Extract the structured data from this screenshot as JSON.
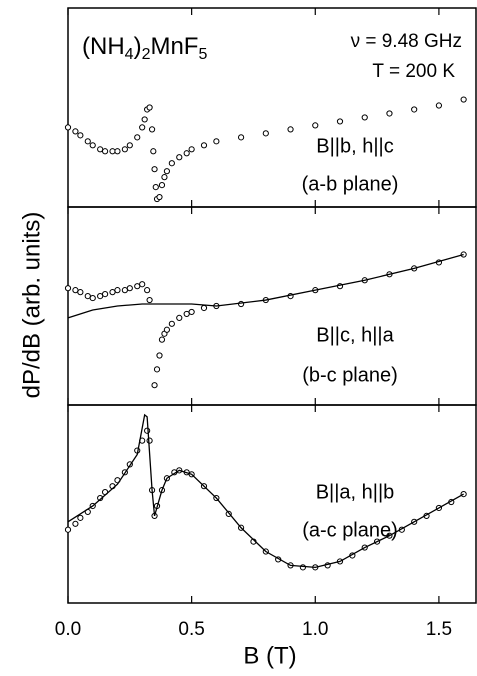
{
  "chart_data": [
    {
      "type": "scatter",
      "annotations": [
        "ν = 9.48 GHz",
        "T = 200 K",
        "B||b, h||c",
        "(a-b plane)"
      ],
      "formula": [
        "(NH",
        "4",
        ")",
        "2",
        "MnF",
        "5"
      ],
      "xlim": [
        0,
        1.65
      ],
      "xticks": [
        0,
        0.5,
        1,
        1.5
      ],
      "ylim": [
        0,
        100
      ],
      "series": [
        {
          "style": "markers",
          "color": "#000000",
          "x": [
            0,
            0.03,
            0.05,
            0.08,
            0.1,
            0.13,
            0.15,
            0.18,
            0.2,
            0.23,
            0.25,
            0.28,
            0.3,
            0.31,
            0.32,
            0.33,
            0.34,
            0.345,
            0.35,
            0.355,
            0.36,
            0.37,
            0.38,
            0.39,
            0.4,
            0.42,
            0.45,
            0.48,
            0.5,
            0.55,
            0.6,
            0.7,
            0.8,
            0.9,
            1.0,
            1.1,
            1.2,
            1.3,
            1.4,
            1.5,
            1.6
          ],
          "values": [
            40,
            38,
            36,
            33,
            31,
            29,
            28,
            28,
            28,
            29,
            31,
            35,
            40,
            44,
            49,
            50,
            39,
            28,
            19,
            10,
            4,
            5,
            11,
            15,
            18,
            22,
            25,
            27,
            29,
            31,
            33,
            35,
            37,
            39,
            41,
            43,
            45,
            47,
            49,
            51,
            54
          ]
        }
      ]
    },
    {
      "type": "scatter",
      "ylabel": "dP/dB (arb. units)",
      "annotations": [
        "B||c, h||a",
        "(b-c plane)"
      ],
      "xlim": [
        0,
        1.65
      ],
      "xticks": [
        0,
        0.5,
        1,
        1.5
      ],
      "ylim": [
        0,
        100
      ],
      "series": [
        {
          "style": "markers",
          "color": "#000000",
          "x": [
            0,
            0.03,
            0.05,
            0.08,
            0.1,
            0.13,
            0.15,
            0.18,
            0.2,
            0.23,
            0.25,
            0.28,
            0.3,
            0.32,
            0.33,
            0.35,
            0.36,
            0.37,
            0.38,
            0.39,
            0.4,
            0.42,
            0.45,
            0.48,
            0.5,
            0.55,
            0.6,
            0.7,
            0.8,
            0.9,
            1.0,
            1.1,
            1.2,
            1.3,
            1.4,
            1.5,
            1.6
          ],
          "values": [
            59,
            58,
            57,
            55,
            54,
            55,
            56,
            57,
            58,
            58,
            59,
            60,
            61,
            58,
            53,
            10,
            18,
            25,
            33,
            36,
            38,
            41,
            44,
            46,
            47,
            49,
            50,
            51,
            53,
            55,
            58,
            60,
            63,
            66,
            69,
            72,
            76
          ]
        },
        {
          "style": "line",
          "color": "#000000",
          "x": [
            0,
            0.1,
            0.2,
            0.3,
            0.4,
            0.5,
            0.6,
            0.8,
            1.0,
            1.2,
            1.4,
            1.6
          ],
          "values": [
            44,
            48,
            50,
            51,
            51,
            51,
            50,
            53,
            58,
            63,
            69,
            76
          ]
        }
      ]
    },
    {
      "type": "scatter",
      "annotations": [
        "B||a, h||b",
        "(a-c plane)"
      ],
      "xlim": [
        0,
        1.65
      ],
      "ylim": [
        0,
        100
      ],
      "xticks": [
        {
          "value": 0,
          "label": "0.0"
        },
        0.5,
        {
          "value": 1,
          "label": "1.0"
        },
        1.5
      ],
      "xlabel": "B (T)",
      "series": [
        {
          "style": "markers",
          "color": "#000000",
          "x": [
            0,
            0.03,
            0.05,
            0.08,
            0.1,
            0.13,
            0.15,
            0.18,
            0.2,
            0.23,
            0.25,
            0.28,
            0.3,
            0.32,
            0.33,
            0.34,
            0.35,
            0.36,
            0.38,
            0.4,
            0.43,
            0.45,
            0.48,
            0.5,
            0.55,
            0.6,
            0.65,
            0.7,
            0.75,
            0.8,
            0.85,
            0.9,
            0.95,
            1.0,
            1.05,
            1.1,
            1.15,
            1.2,
            1.25,
            1.3,
            1.35,
            1.4,
            1.45,
            1.5,
            1.55,
            1.6
          ],
          "values": [
            37,
            40,
            43,
            46,
            49,
            53,
            56,
            59,
            62,
            66,
            70,
            77,
            82,
            87,
            82,
            57,
            44,
            49,
            57,
            63,
            66,
            67,
            66,
            65,
            59,
            53,
            45,
            38,
            31,
            26,
            22,
            19,
            18,
            18,
            19,
            21,
            24,
            28,
            31,
            34,
            37,
            41,
            44,
            48,
            51,
            55
          ]
        },
        {
          "style": "line",
          "color": "#000000",
          "x": [
            0,
            0.1,
            0.2,
            0.28,
            0.31,
            0.32,
            0.34,
            0.35,
            0.38,
            0.4,
            0.45,
            0.5,
            0.6,
            0.7,
            0.8,
            0.9,
            1.0,
            1.1,
            1.2,
            1.3,
            1.4,
            1.5,
            1.6
          ],
          "values": [
            41,
            49,
            60,
            75,
            95,
            94,
            57,
            44,
            57,
            63,
            67,
            65,
            53,
            38,
            26,
            19,
            18,
            21,
            28,
            34,
            41,
            48,
            55
          ]
        }
      ]
    }
  ]
}
